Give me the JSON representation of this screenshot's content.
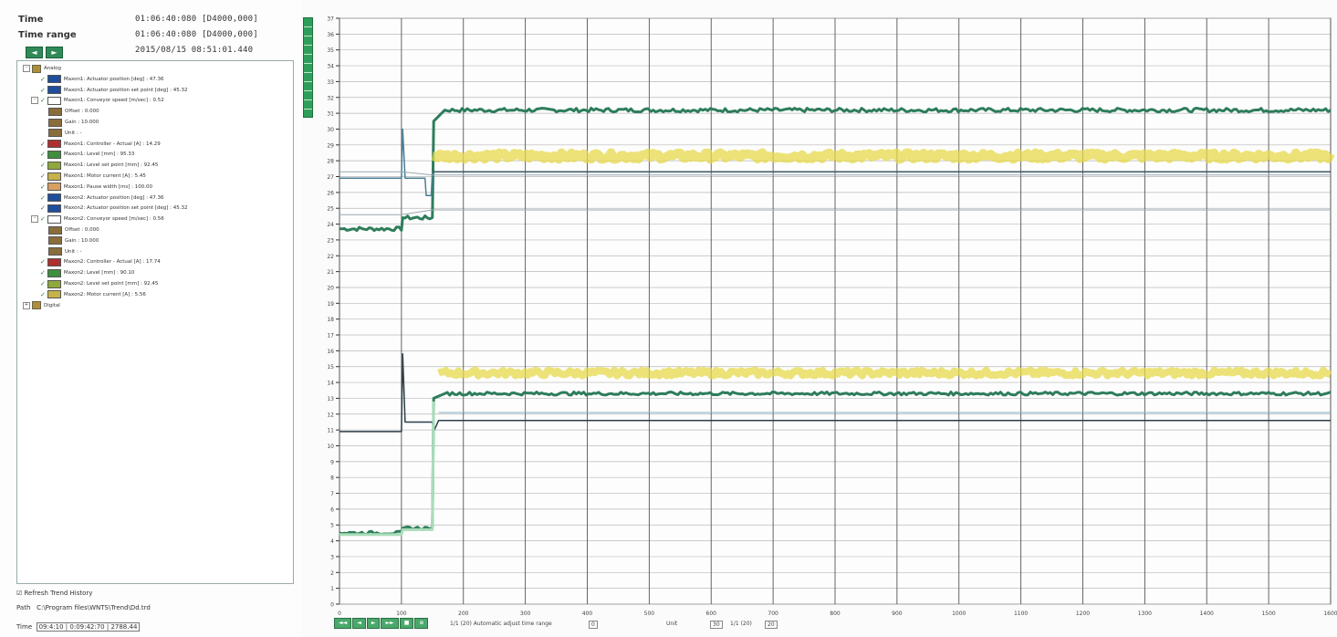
{
  "header": {
    "time_label": "Time",
    "time_value": "01:06:40:080 [D4000,000]",
    "range_label": "Time range",
    "range_value": "01:06:40:080 [D4000,000]",
    "date_value": "2015/08/15 08:51:01.440"
  },
  "tree": [
    {
      "level": 0,
      "exp": "-",
      "chk": false,
      "icon": "folder",
      "text": "Analog"
    },
    {
      "level": 1,
      "exp": "",
      "chk": true,
      "color": "#1f4e9c",
      "text": "Maxon1: Actuator position [deg] : 47.36"
    },
    {
      "level": 1,
      "exp": "",
      "chk": true,
      "color": "#1f4e9c",
      "text": "Maxon1: Actuator position set point [deg] : 45.32"
    },
    {
      "level": 1,
      "exp": "-",
      "chk": true,
      "color": "#ffffff",
      "text": "Maxon1: Conveyor speed [m/sec] : 0.52"
    },
    {
      "level": 2,
      "exp": "",
      "chk": false,
      "color": "#8a6d3b",
      "text": "Offset : 0.000"
    },
    {
      "level": 2,
      "exp": "",
      "chk": false,
      "color": "#8a6d3b",
      "text": "Gain : 10.000"
    },
    {
      "level": 2,
      "exp": "",
      "chk": false,
      "color": "#8a6d3b",
      "text": "Unit : -"
    },
    {
      "level": 1,
      "exp": "",
      "chk": true,
      "color": "#b03030",
      "text": "Maxon1: Controller - Actual [A] : 14.29"
    },
    {
      "level": 1,
      "exp": "",
      "chk": true,
      "color": "#3e8e3e",
      "text": "Maxon1: Level [mm] : 95.33"
    },
    {
      "level": 1,
      "exp": "",
      "chk": true,
      "color": "#8fa83a",
      "text": "Maxon1: Level set point [mm] : 92.45"
    },
    {
      "level": 1,
      "exp": "",
      "chk": true,
      "color": "#c7b24a",
      "text": "Maxon1: Motor current [A] : 5.45"
    },
    {
      "level": 1,
      "exp": "",
      "chk": true,
      "color": "#d8a060",
      "text": "Maxon1: Pause width [ms] : 100.00"
    },
    {
      "level": 1,
      "exp": "",
      "chk": true,
      "color": "#1f4e9c",
      "text": "Maxon2: Actuator position [deg] : 47.36"
    },
    {
      "level": 1,
      "exp": "",
      "chk": true,
      "color": "#1f4e9c",
      "text": "Maxon2: Actuator position set point [deg] : 45.32"
    },
    {
      "level": 1,
      "exp": "-",
      "chk": true,
      "color": "#ffffff",
      "text": "Maxon2: Conveyor speed [m/sec] : 0.56"
    },
    {
      "level": 2,
      "exp": "",
      "chk": false,
      "color": "#8a6d3b",
      "text": "Offset : 0.000"
    },
    {
      "level": 2,
      "exp": "",
      "chk": false,
      "color": "#8a6d3b",
      "text": "Gain : 10.000"
    },
    {
      "level": 2,
      "exp": "",
      "chk": false,
      "color": "#8a6d3b",
      "text": "Unit : -"
    },
    {
      "level": 1,
      "exp": "",
      "chk": true,
      "color": "#b03030",
      "text": "Maxon2: Controller - Actual [A] : 17.74"
    },
    {
      "level": 1,
      "exp": "",
      "chk": true,
      "color": "#3e8e3e",
      "text": "Maxon2: Level [mm] : 90.10"
    },
    {
      "level": 1,
      "exp": "",
      "chk": true,
      "color": "#8fa83a",
      "text": "Maxon2: Level set point [mm] : 92.45"
    },
    {
      "level": 1,
      "exp": "",
      "chk": true,
      "color": "#c7b24a",
      "text": "Maxon2: Motor current [A] : 5.56"
    },
    {
      "level": 0,
      "exp": "+",
      "chk": false,
      "icon": "folder",
      "text": "Digital"
    }
  ],
  "bottom": {
    "checkbox_label": "☑ Refresh Trend History",
    "path_label": "Path",
    "path_value": "C:\\Program files\\WNTS\\Trend\\Dd.trd",
    "time_label": "Time",
    "time_value": "09:4:10 | 0:09:42:70 | 2788.44"
  },
  "chart_data": {
    "type": "line",
    "xlim": [
      0,
      1600
    ],
    "xticks": [
      "0",
      "100",
      "200",
      "300",
      "400",
      "500",
      "600",
      "700",
      "800",
      "900",
      "1000",
      "1100",
      "1200",
      "1300",
      "1400",
      "1500",
      "1600"
    ],
    "ylim": [
      0,
      37
    ],
    "yticks": [
      "0",
      "1",
      "2",
      "3",
      "4",
      "5",
      "6",
      "7",
      "8",
      "9",
      "10",
      "11",
      "12",
      "13",
      "14",
      "15",
      "16",
      "17",
      "18",
      "19",
      "20",
      "21",
      "22",
      "23",
      "24",
      "25",
      "26",
      "27",
      "28",
      "29",
      "30",
      "31",
      "32",
      "33",
      "34",
      "35",
      "36",
      "37"
    ],
    "series": [
      {
        "color": "#2e7d5b",
        "width": 3,
        "noise": 0.25,
        "points": [
          [
            0,
            23.7
          ],
          [
            100,
            23.7
          ],
          [
            102,
            24.4
          ],
          [
            150,
            24.4
          ],
          [
            152,
            30.5
          ],
          [
            170,
            31.2
          ],
          [
            1600,
            31.2
          ]
        ]
      },
      {
        "color": "#e6d84a",
        "width": 10,
        "noise": 0.4,
        "points": [
          [
            150,
            28.3
          ],
          [
            1600,
            28.3
          ]
        ]
      },
      {
        "color": "#3d5866",
        "width": 1.5,
        "noise": 0,
        "points": [
          [
            150,
            27.3
          ],
          [
            1600,
            27.3
          ]
        ]
      },
      {
        "color": "#4a7f96",
        "width": 1.5,
        "noise": 0,
        "points": [
          [
            0,
            26.9
          ],
          [
            100,
            26.9
          ],
          [
            102,
            30.0
          ],
          [
            106,
            26.9
          ],
          [
            138,
            26.9
          ],
          [
            140,
            25.8
          ],
          [
            148,
            25.8
          ],
          [
            150,
            27.3
          ]
        ]
      },
      {
        "color": "#9aa9b0",
        "width": 1,
        "noise": 0,
        "points": [
          [
            0,
            27.3
          ],
          [
            100,
            27.3
          ],
          [
            150,
            27.1
          ],
          [
            1600,
            27.1
          ]
        ]
      },
      {
        "color": "#9aa9b0",
        "width": 1,
        "noise": 0,
        "points": [
          [
            0,
            24.6
          ],
          [
            100,
            24.6
          ],
          [
            150,
            24.9
          ],
          [
            1600,
            24.9
          ]
        ]
      },
      {
        "color": "#e6d84a",
        "width": 8,
        "noise": 0.35,
        "points": [
          [
            160,
            14.6
          ],
          [
            1600,
            14.6
          ]
        ]
      },
      {
        "color": "#2e7d5b",
        "width": 3,
        "noise": 0.2,
        "points": [
          [
            0,
            4.5
          ],
          [
            100,
            4.5
          ],
          [
            102,
            4.8
          ],
          [
            150,
            4.8
          ],
          [
            152,
            13.0
          ],
          [
            170,
            13.3
          ],
          [
            1600,
            13.3
          ]
        ]
      },
      {
        "color": "#2d3e4a",
        "width": 1.5,
        "noise": 0,
        "points": [
          [
            0,
            10.9
          ],
          [
            100,
            10.9
          ],
          [
            102,
            15.8
          ],
          [
            106,
            11.5
          ],
          [
            150,
            11.5
          ],
          [
            152,
            10.9
          ],
          [
            160,
            11.6
          ],
          [
            1600,
            11.6
          ]
        ]
      },
      {
        "color": "#7fb3c9",
        "width": 1,
        "noise": 0,
        "points": [
          [
            160,
            12.1
          ],
          [
            1600,
            12.1
          ]
        ]
      },
      {
        "color": "#a8ddb8",
        "width": 3,
        "noise": 0,
        "points": [
          [
            0,
            4.4
          ],
          [
            100,
            4.4
          ],
          [
            102,
            4.7
          ],
          [
            150,
            4.7
          ],
          [
            152,
            12.8
          ]
        ]
      }
    ]
  },
  "bottom_bar": {
    "buttons": [
      "◄◄",
      "◄",
      "►",
      "►►",
      "■",
      "⊕"
    ],
    "range_text": "1/1 (20) Automatic adjust time range",
    "value1": "0",
    "label2": "Unit",
    "value2": "30",
    "label3": "1/1 (20)",
    "value3": "20"
  }
}
